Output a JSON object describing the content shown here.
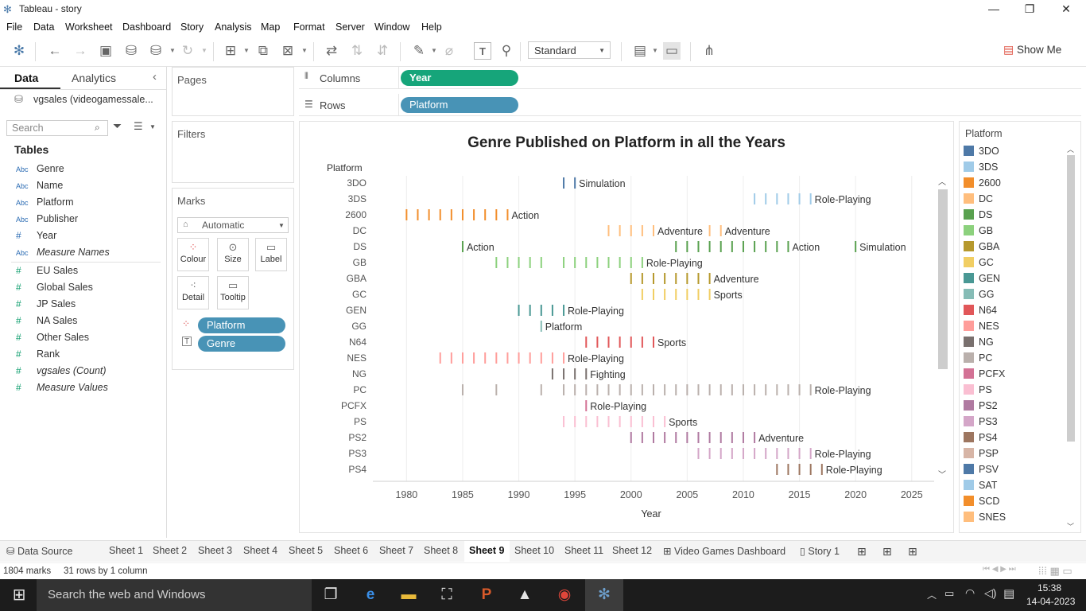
{
  "window": {
    "title": "Tableau - story",
    "minimize": "—",
    "restore": "❐",
    "close": "✕"
  },
  "menu": [
    "File",
    "Data",
    "Worksheet",
    "Dashboard",
    "Story",
    "Analysis",
    "Map",
    "Format",
    "Server",
    "Window",
    "Help"
  ],
  "toolbar": {
    "fit_value": "Standard",
    "show_me": "Show Me"
  },
  "datapane": {
    "tab_data": "Data",
    "tab_analytics": "Analytics",
    "datasource": "vgsales (videogamessale...",
    "search_placeholder": "Search",
    "tables_header": "Tables",
    "dimensions": [
      {
        "type": "Abc",
        "name": "Genre"
      },
      {
        "type": "Abc",
        "name": "Name"
      },
      {
        "type": "Abc",
        "name": "Platform"
      },
      {
        "type": "Abc",
        "name": "Publisher"
      },
      {
        "type": "#",
        "name": "Year"
      },
      {
        "type": "Abc",
        "name": "Measure Names"
      }
    ],
    "measures": [
      {
        "type": "#",
        "name": "EU Sales"
      },
      {
        "type": "#",
        "name": "Global Sales"
      },
      {
        "type": "#",
        "name": "JP Sales"
      },
      {
        "type": "#",
        "name": "NA Sales"
      },
      {
        "type": "#",
        "name": "Other Sales"
      },
      {
        "type": "#",
        "name": "Rank"
      },
      {
        "type": "#",
        "name": "vgsales (Count)"
      },
      {
        "type": "#",
        "name": "Measure Values"
      }
    ]
  },
  "shelves": {
    "pages": "Pages",
    "filters": "Filters",
    "columns_label": "Columns",
    "rows_label": "Rows",
    "columns_pill": "Year",
    "rows_pill": "Platform"
  },
  "marks": {
    "title": "Marks",
    "type": "Automatic",
    "buttons": [
      "Colour",
      "Size",
      "Label",
      "Detail",
      "Tooltip"
    ],
    "pills": [
      "Platform",
      "Genre"
    ]
  },
  "chart_data": {
    "type": "scatter",
    "title": "Genre Published on Platform in all the Years",
    "xlabel": "Year",
    "ylabel": "Platform",
    "xlim": [
      1977,
      2027
    ],
    "xticks": [
      1980,
      1985,
      1990,
      1995,
      2000,
      2005,
      2010,
      2015,
      2020,
      2025
    ],
    "grid": true,
    "mark": "tick",
    "rows": [
      {
        "platform": "3DO",
        "color": "#4e79a7",
        "years": [
          1994,
          1995
        ],
        "labels": [
          {
            "year": 1995,
            "text": "Simulation"
          }
        ]
      },
      {
        "platform": "3DS",
        "color": "#a0cbe8",
        "years": [
          2011,
          2012,
          2013,
          2014,
          2015,
          2016
        ],
        "labels": [
          {
            "year": 2016,
            "text": "Role-Playing"
          }
        ]
      },
      {
        "platform": "2600",
        "color": "#f28e2b",
        "years": [
          1980,
          1981,
          1982,
          1983,
          1984,
          1985,
          1986,
          1987,
          1988,
          1989
        ],
        "labels": [
          {
            "year": 1989,
            "text": "Action"
          }
        ]
      },
      {
        "platform": "DC",
        "color": "#ffbe7d",
        "years": [
          1998,
          1999,
          2000,
          2001,
          2002,
          2007,
          2008
        ],
        "labels": [
          {
            "year": 2002,
            "text": "Adventure"
          },
          {
            "year": 2008,
            "text": "Adventure"
          }
        ]
      },
      {
        "platform": "DS",
        "color": "#59a14f",
        "years": [
          1985,
          2004,
          2005,
          2006,
          2007,
          2008,
          2009,
          2010,
          2011,
          2012,
          2013,
          2014,
          2020
        ],
        "labels": [
          {
            "year": 1985,
            "text": "Action"
          },
          {
            "year": 2014,
            "text": "Action"
          },
          {
            "year": 2020,
            "text": "Simulation"
          }
        ]
      },
      {
        "platform": "GB",
        "color": "#8cd17d",
        "years": [
          1988,
          1989,
          1990,
          1991,
          1992,
          1994,
          1995,
          1996,
          1997,
          1998,
          1999,
          2000,
          2001
        ],
        "labels": [
          {
            "year": 2001,
            "text": "Role-Playing"
          }
        ]
      },
      {
        "platform": "GBA",
        "color": "#b6992d",
        "years": [
          2000,
          2001,
          2002,
          2003,
          2004,
          2005,
          2006,
          2007
        ],
        "labels": [
          {
            "year": 2007,
            "text": "Adventure"
          }
        ]
      },
      {
        "platform": "GC",
        "color": "#f1ce63",
        "years": [
          2001,
          2002,
          2003,
          2004,
          2005,
          2006,
          2007
        ],
        "labels": [
          {
            "year": 2007,
            "text": "Sports"
          }
        ]
      },
      {
        "platform": "GEN",
        "color": "#499894",
        "years": [
          1990,
          1991,
          1992,
          1993,
          1994
        ],
        "labels": [
          {
            "year": 1994,
            "text": "Role-Playing"
          }
        ]
      },
      {
        "platform": "GG",
        "color": "#86bcb6",
        "years": [
          1992
        ],
        "labels": [
          {
            "year": 1992,
            "text": "Platform"
          }
        ]
      },
      {
        "platform": "N64",
        "color": "#e15759",
        "years": [
          1996,
          1997,
          1998,
          1999,
          2000,
          2001,
          2002
        ],
        "labels": [
          {
            "year": 2002,
            "text": "Sports"
          }
        ]
      },
      {
        "platform": "NES",
        "color": "#ff9d9a",
        "years": [
          1983,
          1984,
          1985,
          1986,
          1987,
          1988,
          1989,
          1990,
          1991,
          1992,
          1993,
          1994
        ],
        "labels": [
          {
            "year": 1994,
            "text": "Role-Playing"
          }
        ]
      },
      {
        "platform": "NG",
        "color": "#79706e",
        "years": [
          1993,
          1994,
          1995,
          1996
        ],
        "labels": [
          {
            "year": 1996,
            "text": "Fighting"
          }
        ]
      },
      {
        "platform": "PC",
        "color": "#bab0ac",
        "years": [
          1985,
          1988,
          1992,
          1994,
          1995,
          1996,
          1997,
          1998,
          1999,
          2000,
          2001,
          2002,
          2003,
          2004,
          2005,
          2006,
          2007,
          2008,
          2009,
          2010,
          2011,
          2012,
          2013,
          2014,
          2015,
          2016
        ],
        "labels": [
          {
            "year": 2016,
            "text": "Role-Playing"
          }
        ]
      },
      {
        "platform": "PCFX",
        "color": "#d37295",
        "years": [
          1996
        ],
        "labels": [
          {
            "year": 1996,
            "text": "Role-Playing"
          }
        ]
      },
      {
        "platform": "PS",
        "color": "#fabfd2",
        "years": [
          1994,
          1995,
          1996,
          1997,
          1998,
          1999,
          2000,
          2001,
          2002,
          2003
        ],
        "labels": [
          {
            "year": 2003,
            "text": "Sports"
          }
        ]
      },
      {
        "platform": "PS2",
        "color": "#b07aa1",
        "years": [
          2000,
          2001,
          2002,
          2003,
          2004,
          2005,
          2006,
          2007,
          2008,
          2009,
          2010,
          2011
        ],
        "labels": [
          {
            "year": 2011,
            "text": "Adventure"
          }
        ]
      },
      {
        "platform": "PS3",
        "color": "#d4a6c8",
        "years": [
          2006,
          2007,
          2008,
          2009,
          2010,
          2011,
          2012,
          2013,
          2014,
          2015,
          2016
        ],
        "labels": [
          {
            "year": 2016,
            "text": "Role-Playing"
          }
        ]
      },
      {
        "platform": "PS4",
        "color": "#9d7660",
        "years": [
          2013,
          2014,
          2015,
          2016,
          2017
        ],
        "labels": [
          {
            "year": 2017,
            "text": "Role-Playing"
          }
        ]
      }
    ]
  },
  "legend": {
    "title": "Platform",
    "items": [
      {
        "name": "3DO",
        "color": "#4e79a7"
      },
      {
        "name": "3DS",
        "color": "#a0cbe8"
      },
      {
        "name": "2600",
        "color": "#f28e2b"
      },
      {
        "name": "DC",
        "color": "#ffbe7d"
      },
      {
        "name": "DS",
        "color": "#59a14f"
      },
      {
        "name": "GB",
        "color": "#8cd17d"
      },
      {
        "name": "GBA",
        "color": "#b6992d"
      },
      {
        "name": "GC",
        "color": "#f1ce63"
      },
      {
        "name": "GEN",
        "color": "#499894"
      },
      {
        "name": "GG",
        "color": "#86bcb6"
      },
      {
        "name": "N64",
        "color": "#e15759"
      },
      {
        "name": "NES",
        "color": "#ff9d9a"
      },
      {
        "name": "NG",
        "color": "#79706e"
      },
      {
        "name": "PC",
        "color": "#bab0ac"
      },
      {
        "name": "PCFX",
        "color": "#d37295"
      },
      {
        "name": "PS",
        "color": "#fabfd2"
      },
      {
        "name": "PS2",
        "color": "#b07aa1"
      },
      {
        "name": "PS3",
        "color": "#d4a6c8"
      },
      {
        "name": "PS4",
        "color": "#9d7660"
      },
      {
        "name": "PSP",
        "color": "#d7b5a6"
      },
      {
        "name": "PSV",
        "color": "#4e79a7"
      },
      {
        "name": "SAT",
        "color": "#a0cbe8"
      },
      {
        "name": "SCD",
        "color": "#f28e2b"
      },
      {
        "name": "SNES",
        "color": "#ffbe7d"
      }
    ]
  },
  "sheet_tabs": {
    "data_source": "Data Source",
    "sheets": [
      "Sheet 1",
      "Sheet 2",
      "Sheet 3",
      "Sheet 4",
      "Sheet 5",
      "Sheet 6",
      "Sheet 7",
      "Sheet 8",
      "Sheet 9",
      "Sheet 10",
      "Sheet 11",
      "Sheet 12"
    ],
    "active": "Sheet 9",
    "dashboard": "Video Games Dashboard",
    "story": "Story 1"
  },
  "status": {
    "marks": "1804 marks",
    "dims": "31 rows by 1 column"
  },
  "taskbar": {
    "search": "Search the web and Windows",
    "time": "15:38",
    "date": "14-04-2023"
  }
}
